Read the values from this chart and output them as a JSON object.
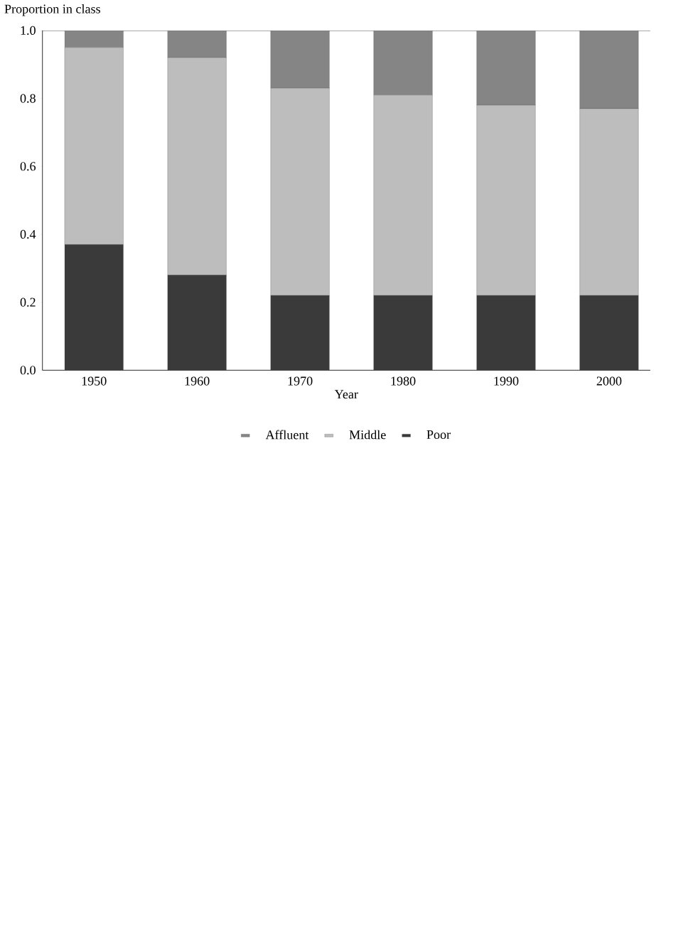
{
  "chart_data": {
    "type": "bar",
    "stacked": true,
    "xlabel": "Year",
    "ylabel": "Proportion in class",
    "categories": [
      "1950",
      "1960",
      "1970",
      "1980",
      "1990",
      "2000"
    ],
    "series": [
      {
        "name": "Poor",
        "color": "#3a3a3a",
        "values": [
          0.37,
          0.28,
          0.22,
          0.22,
          0.22,
          0.22
        ]
      },
      {
        "name": "Middle",
        "color": "#bdbdbd",
        "values": [
          0.58,
          0.64,
          0.61,
          0.59,
          0.56,
          0.55
        ]
      },
      {
        "name": "Affluent",
        "color": "#858585",
        "values": [
          0.05,
          0.08,
          0.17,
          0.19,
          0.22,
          0.23
        ]
      }
    ],
    "ylim": [
      0,
      1
    ],
    "yticks": [
      {
        "value": 0,
        "label": "0.0"
      },
      0.2,
      0.4,
      0.6,
      0.8,
      {
        "value": 1,
        "label": "1.0"
      }
    ],
    "legend": "bottom",
    "grid": false
  }
}
